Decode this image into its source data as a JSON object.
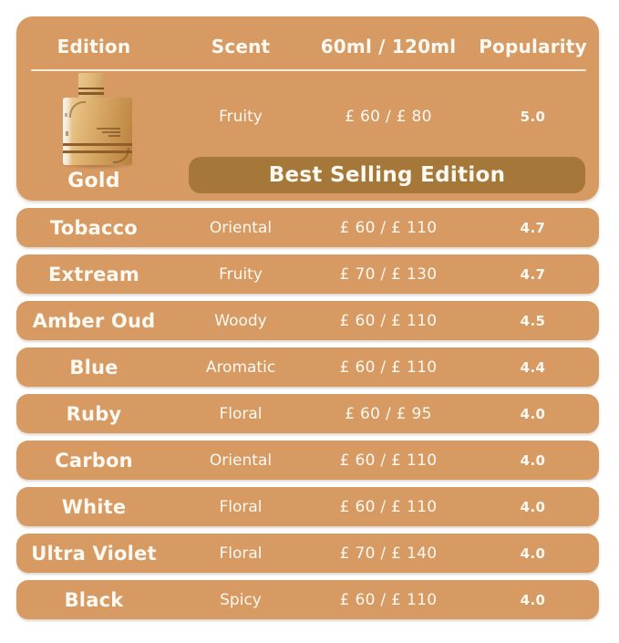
{
  "table": {
    "headers": [
      "Edition",
      "Scent",
      "60ml / 120ml",
      "Popularity"
    ],
    "featured": {
      "edition": "Gold",
      "scent": "Fruity",
      "price": "£ 60 / £ 80",
      "popularity": "5.0",
      "banner": "Best Selling Edition"
    },
    "rows": [
      {
        "edition": "Tobacco",
        "scent": "Oriental",
        "price": "£ 60 / £ 110",
        "popularity": "4.7"
      },
      {
        "edition": "Extream",
        "scent": "Fruity",
        "price": "£ 70 / £ 130",
        "popularity": "4.7"
      },
      {
        "edition": "Amber Oud",
        "scent": "Woody",
        "price": "£ 60 / £ 110",
        "popularity": "4.5"
      },
      {
        "edition": "Blue",
        "scent": "Aromatic",
        "price": "£ 60 / £ 110",
        "popularity": "4.4"
      },
      {
        "edition": "Ruby",
        "scent": "Floral",
        "price": "£ 60 / £ 95",
        "popularity": "4.0"
      },
      {
        "edition": "Carbon",
        "scent": "Oriental",
        "price": "£ 60 / £ 110",
        "popularity": "4.0"
      },
      {
        "edition": "White",
        "scent": "Floral",
        "price": "£ 60 / £ 110",
        "popularity": "4.0"
      },
      {
        "edition": "Ultra Violet",
        "scent": "Floral",
        "price": "£ 70 / £ 140",
        "popularity": "4.0"
      },
      {
        "edition": "Black",
        "scent": "Spicy",
        "price": "£ 60 / £ 110",
        "popularity": "4.0"
      }
    ]
  },
  "colors": {
    "card_tan": "#D69A62",
    "banner_brown": "#A57839",
    "text_cream": "#FCF9F2",
    "divider_cream": "#F5ECD8",
    "background": "#FFFFFF"
  },
  "chart_data": {
    "type": "table",
    "title": "Perfume edition comparison",
    "columns": [
      "Edition",
      "Scent",
      "60ml / 120ml",
      "Popularity"
    ],
    "rows": [
      [
        "Gold",
        "Fruity",
        "£ 60 / £ 80",
        5.0
      ],
      [
        "Tobacco",
        "Oriental",
        "£ 60 / £ 110",
        4.7
      ],
      [
        "Extream",
        "Fruity",
        "£ 70 / £ 130",
        4.7
      ],
      [
        "Amber Oud",
        "Woody",
        "£ 60 / £ 110",
        4.5
      ],
      [
        "Blue",
        "Aromatic",
        "£ 60 / £ 110",
        4.4
      ],
      [
        "Ruby",
        "Floral",
        "£ 60 / £ 95",
        4.0
      ],
      [
        "Carbon",
        "Oriental",
        "£ 60 / £ 110",
        4.0
      ],
      [
        "White",
        "Floral",
        "£ 60 / £ 110",
        4.0
      ],
      [
        "Ultra Violet",
        "Floral",
        "£ 70 / £ 140",
        4.0
      ],
      [
        "Black",
        "Spicy",
        "£ 60 / £ 110",
        4.0
      ]
    ],
    "annotations": [
      "Best Selling Edition (Gold)"
    ]
  }
}
